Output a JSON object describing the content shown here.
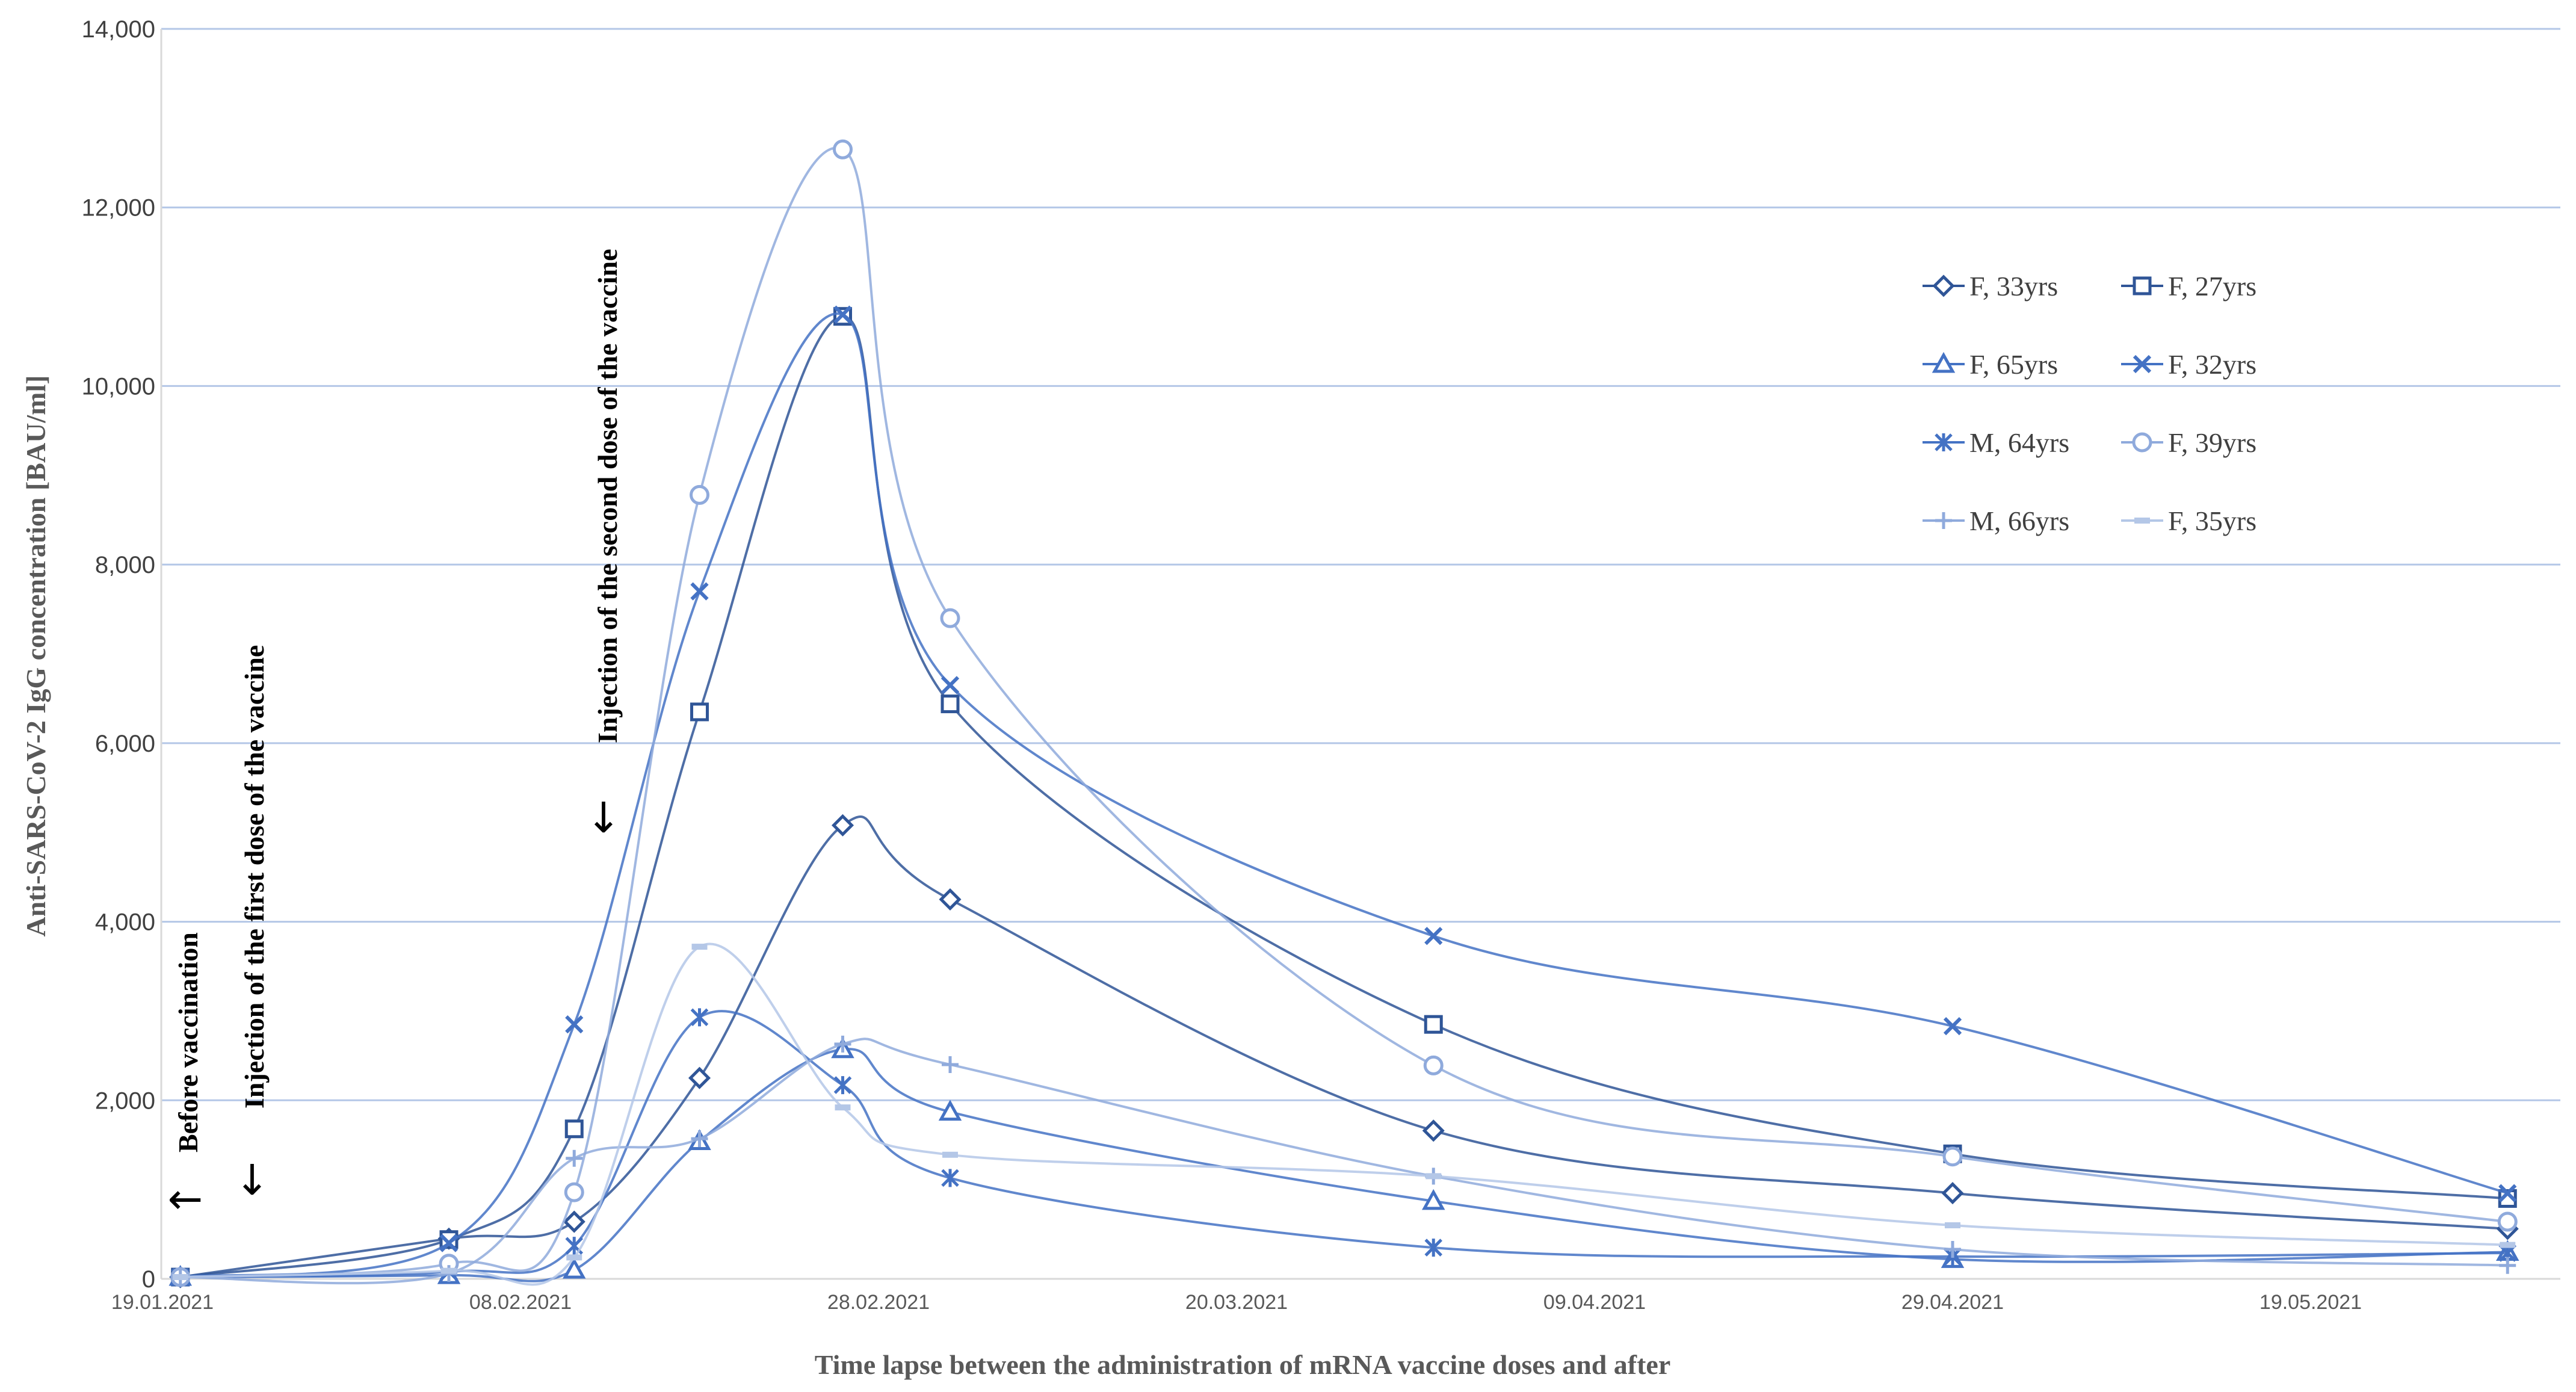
{
  "chart_data": {
    "type": "line",
    "title": "",
    "xlabel": "Time lapse between the administration  of mRNA vaccine doses and after",
    "ylabel": "Anti-SARS-CoV-2 IgG concentration [BAU/ml]",
    "ylim": [
      0,
      14000
    ],
    "y_ticks": [
      "0",
      "2,000",
      "4,000",
      "6,000",
      "8,000",
      "10,000",
      "12,000",
      "14,000"
    ],
    "y_tick_values": [
      0,
      2000,
      4000,
      6000,
      8000,
      10000,
      12000,
      14000
    ],
    "x_tick_labels": [
      "19.01.2021",
      "08.02.2021",
      "28.02.2021",
      "20.03.2021",
      "09.04.2021",
      "29.04.2021",
      "19.05.2021"
    ],
    "x_tick_days": [
      0,
      20,
      40,
      60,
      80,
      100,
      120
    ],
    "x_range_days": [
      0,
      133
    ],
    "x_unit": "days since 19.01.2021",
    "x": [
      1,
      16,
      23,
      30,
      38,
      44,
      71,
      100,
      131
    ],
    "grid": true,
    "legend_position": "top-right",
    "series": [
      {
        "name": "F, 33yrs",
        "marker": "diamond",
        "color": "#2f5597",
        "values": [
          20,
          450,
          640,
          2250,
          5080,
          4250,
          1660,
          960,
          560
        ]
      },
      {
        "name": "F, 27yrs",
        "marker": "square",
        "color": "#2f5597",
        "values": [
          20,
          440,
          1680,
          6350,
          10780,
          6440,
          2850,
          1400,
          900
        ]
      },
      {
        "name": "F, 65yrs",
        "marker": "triangle",
        "color": "#4472c4",
        "values": [
          20,
          40,
          100,
          1540,
          2570,
          1870,
          870,
          220,
          300
        ]
      },
      {
        "name": "F, 32yrs",
        "marker": "x",
        "color": "#4472c4",
        "values": [
          20,
          400,
          2850,
          7700,
          10800,
          6650,
          3840,
          2830,
          960
        ]
      },
      {
        "name": "M, 64yrs",
        "marker": "star",
        "color": "#4472c4",
        "values": [
          20,
          80,
          370,
          2930,
          2170,
          1130,
          350,
          250,
          290
        ]
      },
      {
        "name": "F, 39yrs",
        "marker": "circle",
        "color": "#8faadc",
        "values": [
          20,
          170,
          970,
          8780,
          12650,
          7400,
          2390,
          1370,
          640
        ]
      },
      {
        "name": "M, 66yrs",
        "marker": "plus",
        "color": "#8faadc",
        "values": [
          20,
          60,
          1350,
          1570,
          2630,
          2400,
          1150,
          330,
          150
        ]
      },
      {
        "name": "F, 35yrs",
        "marker": "dash",
        "color": "#b4c7e7",
        "values": [
          20,
          90,
          240,
          3720,
          1920,
          1390,
          1150,
          600,
          380
        ]
      }
    ],
    "annotations": [
      {
        "text": "Before vaccination",
        "arrow": "←"
      },
      {
        "text": "Injection  of the first dose of the vaccine",
        "arrow": "↓"
      },
      {
        "text": "Injection  of the second dose of the vaccine",
        "arrow": "↓"
      }
    ]
  }
}
